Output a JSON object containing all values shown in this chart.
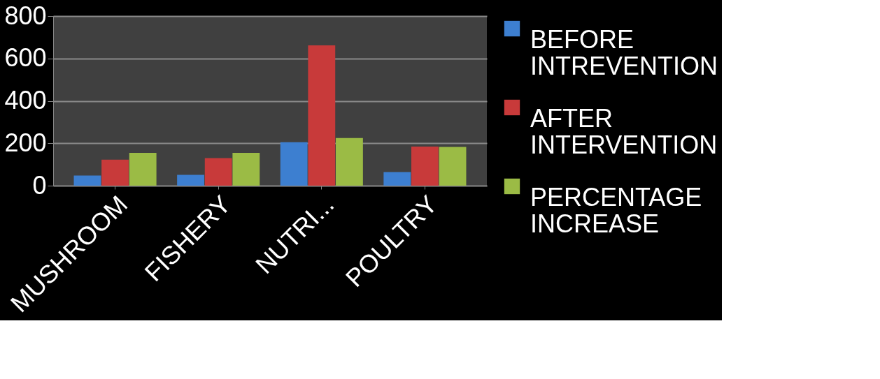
{
  "chart_data": {
    "type": "bar",
    "categories": [
      "MUSHROOM",
      "FISHERY",
      "NUTRI...",
      "POULTRY"
    ],
    "series": [
      {
        "name": "BEFORE INTREVENTION",
        "color": "#3d7fd0",
        "values": [
          48,
          51,
          205,
          64
        ]
      },
      {
        "name": "AFTER INTERVENTION",
        "color": "#c83a3a",
        "values": [
          123,
          130,
          662,
          184
        ]
      },
      {
        "name": "PERCENTAGE INCREASE",
        "color": "#9bbb45",
        "values": [
          155,
          155,
          225,
          183
        ]
      }
    ],
    "ylim": [
      0,
      800
    ],
    "yticks": [
      0,
      200,
      400,
      600,
      800
    ],
    "grid": "y",
    "legend": "right"
  }
}
